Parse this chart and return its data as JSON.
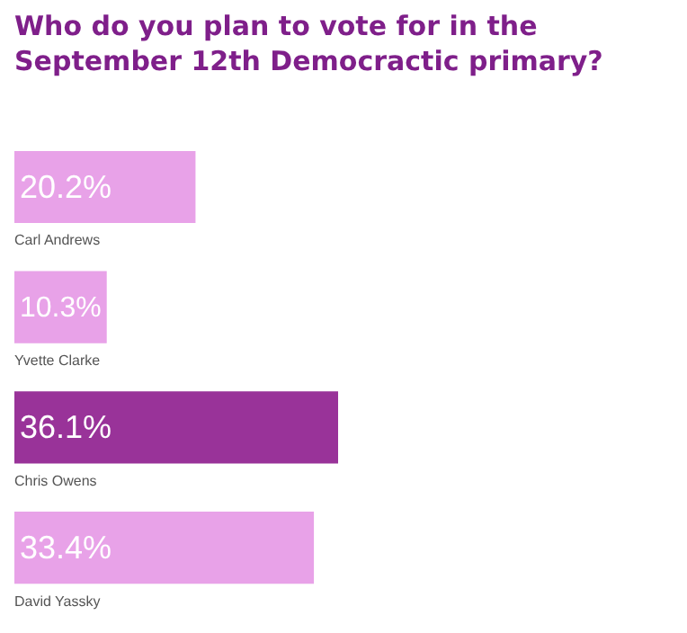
{
  "chart_data": {
    "type": "bar",
    "orientation": "horizontal",
    "title": "Who do you plan to vote for in the September 12th Democractic primary?",
    "categories": [
      "Carl Andrews",
      "Yvette Clarke",
      "Chris Owens",
      "David Yassky"
    ],
    "values": [
      20.2,
      10.3,
      36.1,
      33.4
    ],
    "value_labels": [
      "20.2%",
      "10.3%",
      "36.1%",
      "33.4%"
    ],
    "colors": [
      "#e8a2e8",
      "#e8a2e8",
      "#993399",
      "#e8a2e8"
    ],
    "tick_labels": false
  }
}
